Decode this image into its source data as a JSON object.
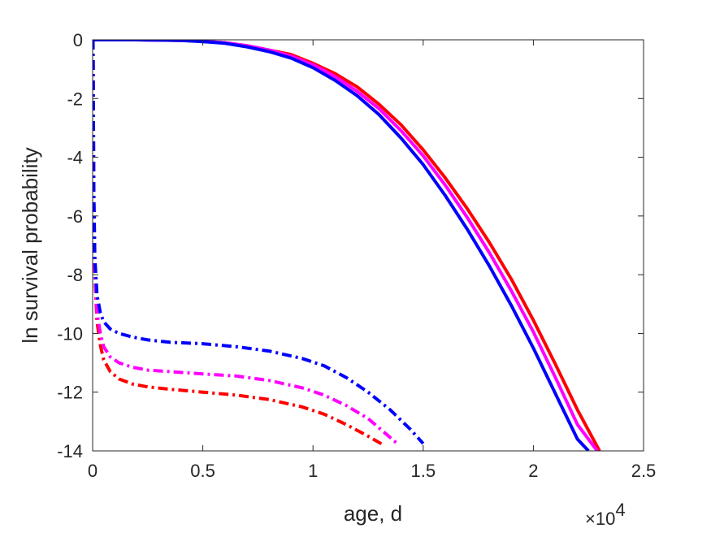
{
  "chart_data": {
    "type": "line",
    "title": "",
    "xlabel": "age, d",
    "ylabel": "ln survival probability",
    "x_multiplier": "×10",
    "x_exponent": "4",
    "xlim": [
      0,
      2.5
    ],
    "ylim": [
      -14,
      0
    ],
    "xticks": [
      0,
      0.5,
      1,
      1.5,
      2,
      2.5
    ],
    "xtick_labels": [
      "0",
      "0.5",
      "1",
      "1.5",
      "2",
      "2.5"
    ],
    "yticks": [
      0,
      -2,
      -4,
      -6,
      -8,
      -10,
      -12,
      -14
    ],
    "ytick_labels": [
      "0",
      "-2",
      "-4",
      "-6",
      "-8",
      "-10",
      "-12",
      "-14"
    ],
    "grid": false,
    "legend": "none",
    "series": [
      {
        "color": "#ff0000",
        "style": "solid",
        "x": [
          0,
          0.1,
          0.2,
          0.3,
          0.4,
          0.5,
          0.6,
          0.7,
          0.8,
          0.9,
          1.0,
          1.1,
          1.2,
          1.3,
          1.4,
          1.5,
          1.6,
          1.7,
          1.8,
          1.9,
          2.0,
          2.1,
          2.2,
          2.3
        ],
        "y": [
          0,
          0,
          0,
          -0.01,
          -0.02,
          -0.05,
          -0.1,
          -0.2,
          -0.35,
          -0.5,
          -0.8,
          -1.15,
          -1.6,
          -2.2,
          -2.9,
          -3.75,
          -4.7,
          -5.75,
          -6.9,
          -8.15,
          -9.55,
          -11.05,
          -12.6,
          -14.0
        ]
      },
      {
        "color": "#ff00ff",
        "style": "solid",
        "x": [
          0,
          0.1,
          0.2,
          0.3,
          0.4,
          0.5,
          0.6,
          0.7,
          0.8,
          0.9,
          1.0,
          1.1,
          1.2,
          1.3,
          1.4,
          1.5,
          1.6,
          1.7,
          1.8,
          1.9,
          2.0,
          2.1,
          2.2,
          2.29
        ],
        "y": [
          0,
          0,
          0,
          -0.01,
          -0.02,
          -0.05,
          -0.1,
          -0.2,
          -0.35,
          -0.55,
          -0.85,
          -1.25,
          -1.75,
          -2.35,
          -3.1,
          -3.95,
          -4.95,
          -6.05,
          -7.25,
          -8.55,
          -9.95,
          -11.5,
          -13.1,
          -14.0
        ]
      },
      {
        "color": "#0000ff",
        "style": "solid",
        "x": [
          0,
          0.1,
          0.2,
          0.3,
          0.4,
          0.5,
          0.6,
          0.7,
          0.8,
          0.9,
          1.0,
          1.1,
          1.2,
          1.3,
          1.4,
          1.5,
          1.6,
          1.7,
          1.8,
          1.9,
          2.0,
          2.1,
          2.2,
          2.25
        ],
        "y": [
          0,
          0,
          0,
          -0.01,
          -0.02,
          -0.06,
          -0.12,
          -0.24,
          -0.4,
          -0.62,
          -0.95,
          -1.38,
          -1.9,
          -2.55,
          -3.35,
          -4.25,
          -5.3,
          -6.45,
          -7.7,
          -9.05,
          -10.5,
          -12.05,
          -13.6,
          -14.0
        ]
      },
      {
        "color": "#ff0000",
        "style": "dashdot",
        "x": [
          0.002,
          0.005,
          0.01,
          0.02,
          0.035,
          0.05,
          0.08,
          0.12,
          0.18,
          0.25,
          0.35,
          0.5,
          0.65,
          0.8,
          0.95,
          1.05,
          1.15,
          1.25,
          1.32
        ],
        "y": [
          0,
          -5.5,
          -8.0,
          -9.6,
          -10.4,
          -10.9,
          -11.3,
          -11.55,
          -11.72,
          -11.82,
          -11.9,
          -12.0,
          -12.1,
          -12.25,
          -12.5,
          -12.75,
          -13.1,
          -13.5,
          -13.8
        ]
      },
      {
        "color": "#ff00ff",
        "style": "dashdot",
        "x": [
          0.002,
          0.005,
          0.01,
          0.02,
          0.035,
          0.05,
          0.08,
          0.12,
          0.18,
          0.25,
          0.35,
          0.5,
          0.65,
          0.8,
          0.95,
          1.05,
          1.15,
          1.25,
          1.32,
          1.39
        ],
        "y": [
          0,
          -5.3,
          -7.8,
          -9.3,
          -10.0,
          -10.45,
          -10.8,
          -11.0,
          -11.15,
          -11.25,
          -11.3,
          -11.38,
          -11.45,
          -11.6,
          -11.85,
          -12.1,
          -12.45,
          -12.9,
          -13.35,
          -13.8
        ]
      },
      {
        "color": "#0000ff",
        "style": "dashdot",
        "x": [
          0.002,
          0.005,
          0.01,
          0.02,
          0.035,
          0.05,
          0.08,
          0.12,
          0.18,
          0.25,
          0.35,
          0.5,
          0.65,
          0.8,
          0.95,
          1.05,
          1.15,
          1.25,
          1.35,
          1.44,
          1.5
        ],
        "y": [
          0,
          -5.0,
          -7.4,
          -8.7,
          -9.3,
          -9.6,
          -9.85,
          -10.0,
          -10.12,
          -10.22,
          -10.3,
          -10.35,
          -10.45,
          -10.6,
          -10.85,
          -11.1,
          -11.5,
          -12.0,
          -12.6,
          -13.25,
          -13.75
        ]
      }
    ]
  }
}
